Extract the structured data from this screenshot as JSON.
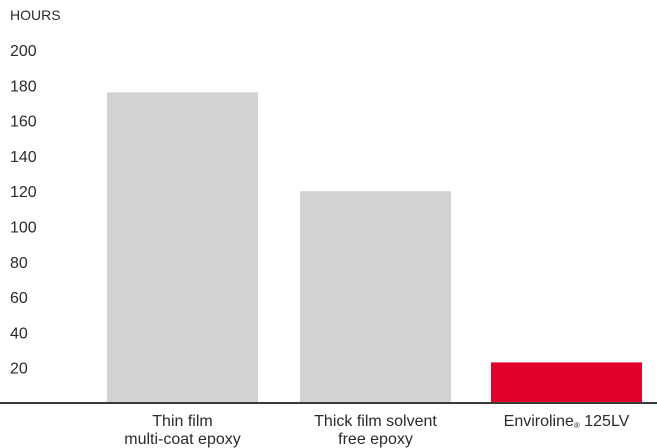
{
  "chart_data": {
    "type": "bar",
    "ylabel": "HOURS",
    "ylim": [
      0,
      200
    ],
    "yticks": [
      "20",
      "40",
      "60",
      "80",
      "100",
      "120",
      "140",
      "160",
      "180",
      "200"
    ],
    "categories": [
      {
        "lines": [
          "Thin film",
          "multi-coat epoxy"
        ]
      },
      {
        "lines": [
          "Thick film solvent",
          "free epoxy"
        ]
      },
      {
        "name": "Enviroline",
        "mark": "®",
        "suffix": " 125LV"
      }
    ],
    "values": [
      176,
      120,
      23
    ],
    "colors": [
      "#d2d2d2",
      "#d2d2d2",
      "#e0002b"
    ],
    "grid": false,
    "axis_color": "#3a3a3a"
  }
}
